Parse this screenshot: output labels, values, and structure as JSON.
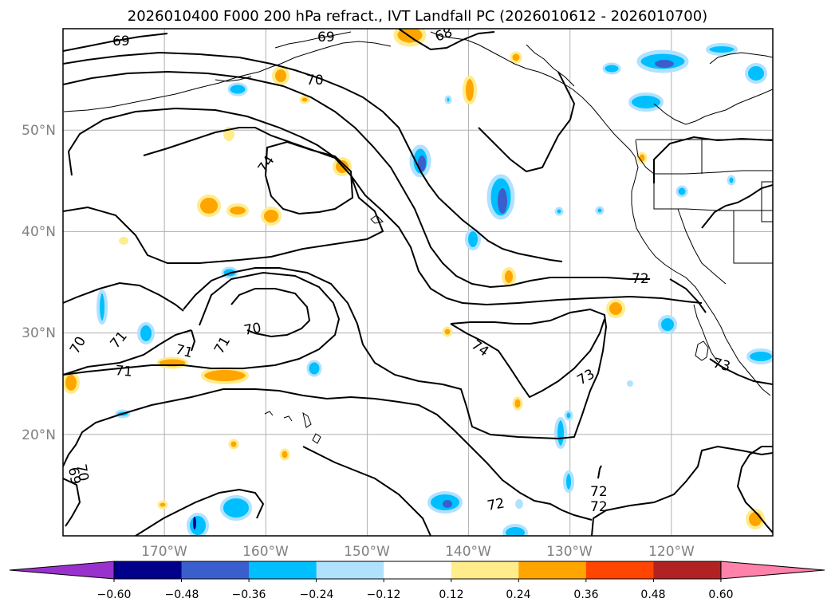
{
  "title": "2026010400 F000 200 hPa refract., IVT Landfall PC (2026010612 - 2026010700)",
  "axes": {
    "lon_ticks": [
      "170°W",
      "160°W",
      "150°W",
      "140°W",
      "130°W",
      "120°W"
    ],
    "lat_ticks": [
      "50°N",
      "40°N",
      "30°N",
      "20°N"
    ],
    "lon_range": [
      -180,
      -110
    ],
    "lat_range": [
      10,
      60
    ],
    "grid": true
  },
  "contour_labels": [
    "69",
    "69",
    "68",
    "70",
    "74",
    "70",
    "71",
    "71",
    "71",
    "70",
    "71",
    "72",
    "74",
    "73",
    "73",
    "72",
    "72",
    "72",
    "70",
    "69"
  ],
  "colorbar": {
    "ticks": [
      "−0.60",
      "−0.48",
      "−0.36",
      "−0.24",
      "−0.12",
      "0.12",
      "0.24",
      "0.36",
      "0.48",
      "0.60"
    ],
    "colors": [
      "#9932cc",
      "#00008b",
      "#3a5fcd",
      "#00bfff",
      "#b0e2ff",
      "#ffffff",
      "#ffec8b",
      "#ffa500",
      "#ff4500",
      "#b22222",
      "#ff82ab"
    ]
  }
}
